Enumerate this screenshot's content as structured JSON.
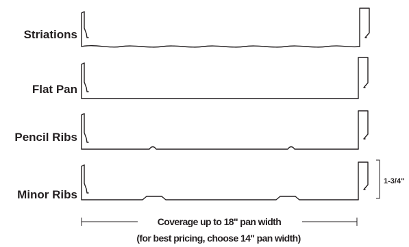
{
  "panels": [
    {
      "label": "Striations",
      "profile": "striations"
    },
    {
      "label": "Flat Pan",
      "profile": "flat"
    },
    {
      "label": "Pencil Ribs",
      "profile": "pencil-ribs"
    },
    {
      "label": "Minor Ribs",
      "profile": "minor-ribs"
    }
  ],
  "dimension": {
    "height_label": "1-3/4\""
  },
  "caption": {
    "line1": "Coverage up to 18\" pan width",
    "line2": "(for best pricing, choose 14\" pan width)"
  },
  "colors": {
    "stroke": "#231f20",
    "text": "#231f20"
  }
}
